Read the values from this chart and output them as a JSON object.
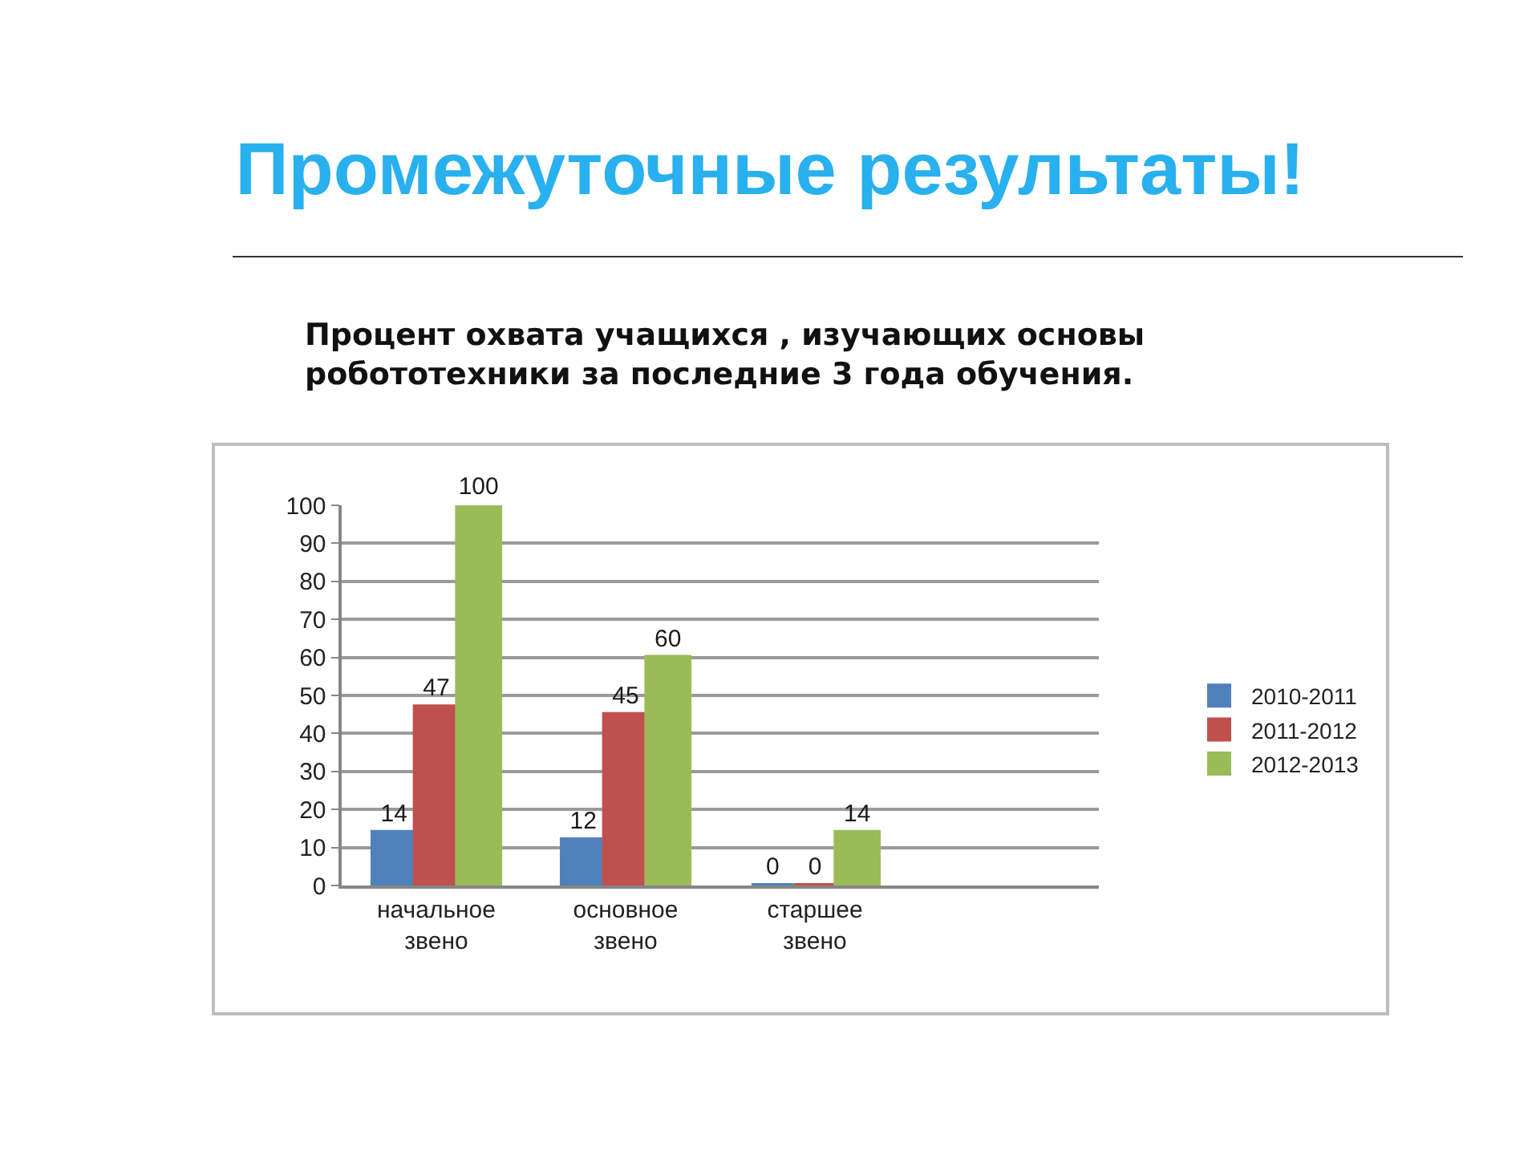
{
  "chart_data": {
    "type": "bar",
    "title": "Промежуточные результаты!",
    "subtitle": "Процент охвата учащихся , изучающих основы робототехники за последние 3 года обучения.",
    "categories": [
      "начальное звено",
      "основное звено",
      "старшее звено",
      null
    ],
    "series": [
      {
        "name": "2010-2011",
        "color": "#4f81bd",
        "values": [
          14,
          12,
          0,
          null
        ]
      },
      {
        "name": "2011-2012",
        "color": "#c0504d",
        "values": [
          47,
          45,
          0,
          null
        ]
      },
      {
        "name": "2012-2013",
        "color": "#9bbb59",
        "values": [
          100,
          60,
          14,
          null
        ]
      }
    ],
    "ylim": [
      0,
      100
    ],
    "yticks": [
      0,
      10,
      20,
      30,
      40,
      50,
      60,
      70,
      80,
      90,
      100
    ],
    "grid": "y",
    "legend": "right",
    "data_labels": true
  }
}
